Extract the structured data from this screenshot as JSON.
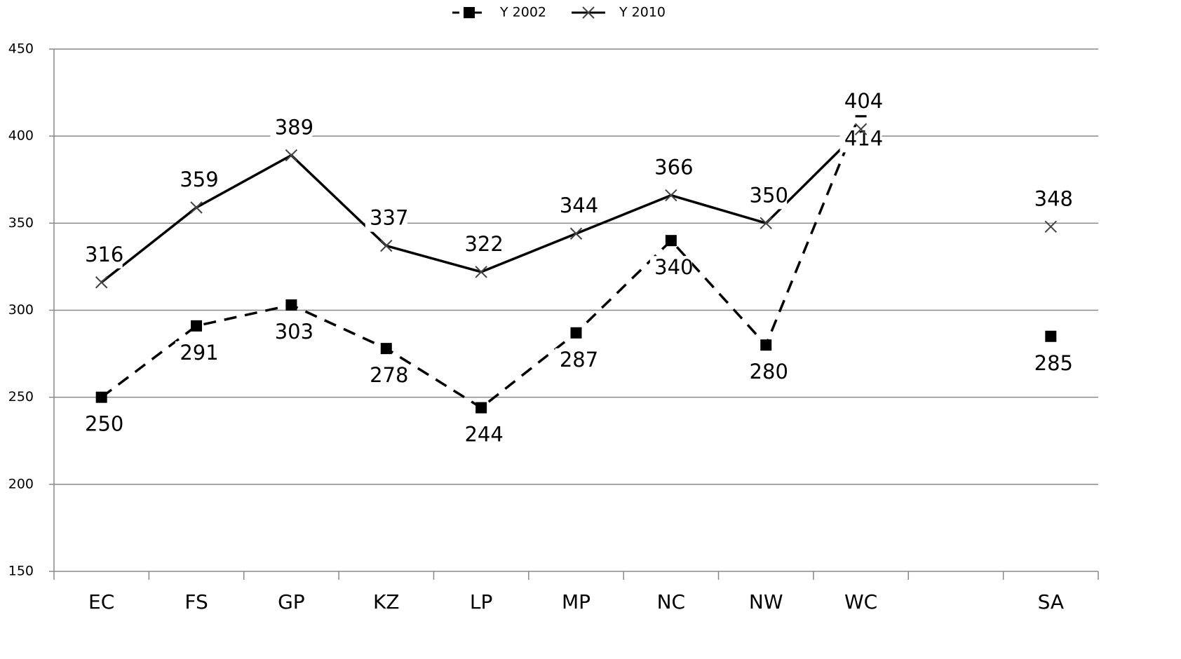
{
  "chart_data": {
    "type": "line",
    "categories": [
      "EC",
      "FS",
      "GP",
      "KZ",
      "LP",
      "MP",
      "NC",
      "NW",
      "WC",
      null,
      "SA"
    ],
    "series": [
      {
        "name": "Y 2002",
        "color": "#000000",
        "line_style": "dashed",
        "marker": "square",
        "label_position": "below",
        "values": [
          250,
          291,
          303,
          278,
          244,
          287,
          340,
          280,
          414,
          null,
          285
        ]
      },
      {
        "name": "Y 2010",
        "color": "#000000",
        "line_style": "solid",
        "marker": "x",
        "label_position": "above",
        "values": [
          316,
          359,
          389,
          337,
          322,
          344,
          366,
          350,
          404,
          null,
          348
        ]
      }
    ],
    "ylim": [
      150,
      450
    ],
    "yticks": [
      150,
      200,
      250,
      300,
      350,
      400,
      450
    ],
    "grid": true,
    "legend": "top"
  }
}
